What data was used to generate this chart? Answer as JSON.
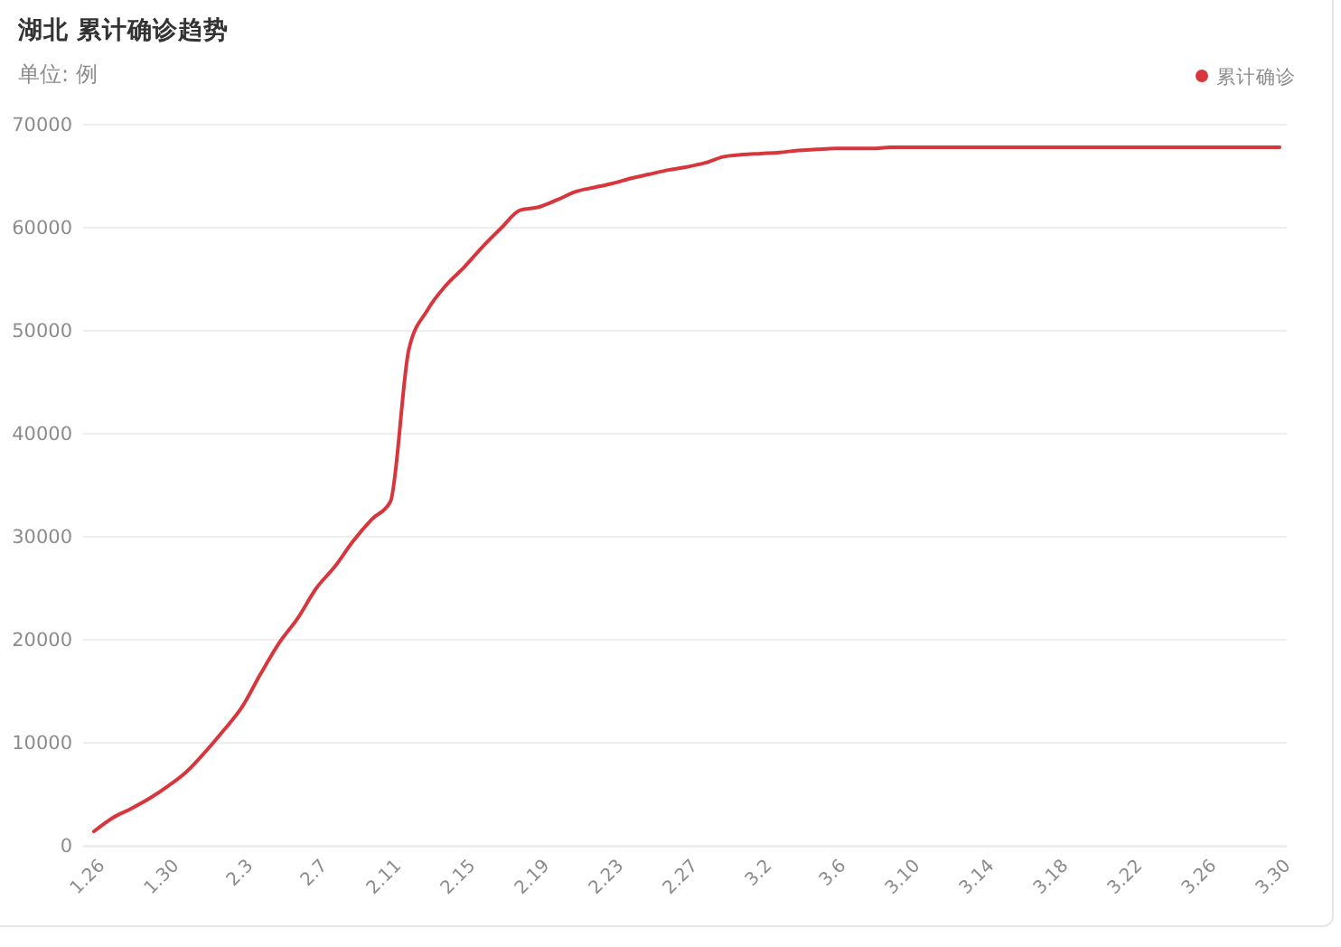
{
  "chart_data": {
    "type": "line",
    "title": "湖北 累计确诊趋势",
    "subtitle": "单位: 例",
    "categories": [
      "1.26",
      null,
      null,
      null,
      "1.30",
      null,
      null,
      null,
      "2.3",
      null,
      null,
      null,
      "2.7",
      null,
      null,
      null,
      "2.11",
      null,
      null,
      null,
      "2.15",
      null,
      null,
      null,
      "2.19",
      null,
      null,
      null,
      "2.23",
      null,
      null,
      null,
      "2.27",
      null,
      null,
      null,
      "3.2",
      null,
      null,
      null,
      "3.6",
      null,
      null,
      null,
      "3.10",
      null,
      null,
      null,
      "3.14",
      null,
      null,
      null,
      "3.18",
      null,
      null,
      null,
      "3.22",
      null,
      null,
      null,
      "3.26",
      null,
      null,
      null,
      "3.30"
    ],
    "series": [
      {
        "name": "累计确诊",
        "color": "#d6363c",
        "values": [
          1400,
          2700,
          3600,
          4600,
          5800,
          7200,
          9100,
          11200,
          13500,
          16700,
          19700,
          22100,
          25000,
          27100,
          29600,
          31700,
          33400,
          48200,
          52000,
          54400,
          56200,
          58200,
          60000,
          61700,
          62000,
          62700,
          63500,
          63900,
          64300,
          64800,
          65200,
          65600,
          65900,
          66300,
          66900,
          67100,
          67200,
          67300,
          67500,
          67600,
          67700,
          67700,
          67700,
          67800,
          67800,
          67800,
          67800,
          67800,
          67800,
          67800,
          67800,
          67800,
          67800,
          67800,
          67800,
          67800,
          67800,
          67800,
          67800,
          67800,
          67800,
          67800,
          67800,
          67800,
          67800
        ]
      }
    ],
    "ylim": [
      0,
      70000
    ],
    "yticks": [
      0,
      10000,
      20000,
      30000,
      40000,
      50000,
      60000,
      70000
    ],
    "grid": "y",
    "legend": "top right",
    "marker": "none",
    "line_style": "solid"
  }
}
